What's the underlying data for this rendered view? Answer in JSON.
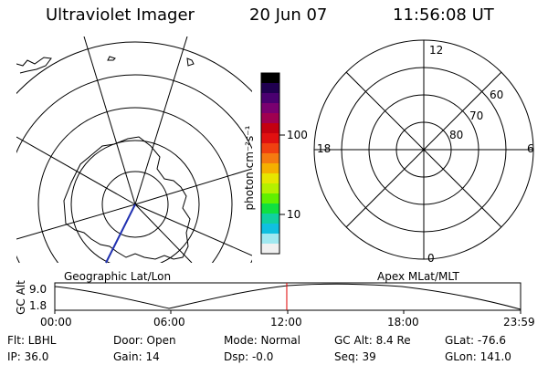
{
  "header": {
    "instrument": "Ultraviolet Imager",
    "date": "20 Jun 07",
    "time": "11:56:08 UT"
  },
  "left_panel": {
    "caption": "Geographic Lat/Lon"
  },
  "right_panel": {
    "caption": "Apex MLat/MLT",
    "mlt_labels": {
      "top": "12",
      "left": "18",
      "right": "6",
      "bottom": "0"
    },
    "lat_labels": [
      "60",
      "70",
      "80"
    ]
  },
  "colorbar": {
    "unit_label": "photon cm⁻²s⁻¹",
    "ticks": [
      "100",
      "10"
    ],
    "colors": [
      "#000000",
      "#200050",
      "#4a0070",
      "#7a0070",
      "#a00050",
      "#c40010",
      "#e01010",
      "#f04010",
      "#f57a10",
      "#f5b000",
      "#e6e600",
      "#b4f000",
      "#60f000",
      "#10e040",
      "#10d0a0",
      "#10c0e0",
      "#a0e8f0",
      "#f0f0f0"
    ]
  },
  "altitude_plot": {
    "ylabel": "GC Alt",
    "y_ticks": [
      "9.0",
      "1.8"
    ],
    "x_ticks": [
      "00:00",
      "06:00",
      "12:00",
      "18:00",
      "23:59"
    ],
    "current_time_fraction": 0.498,
    "marker_color": "#e00000"
  },
  "status": {
    "flt": "Flt: LBHL",
    "ip": "IP: 36.0",
    "door": "Door: Open",
    "gain": "Gain: 14",
    "mode": "Mode: Normal",
    "dsp": "Dsp:    -0.0",
    "gc_alt": "GC Alt: 8.4 Re",
    "seq": "Seq: 39",
    "glat": "GLat: -76.6",
    "glon": "GLon: 141.0"
  }
}
